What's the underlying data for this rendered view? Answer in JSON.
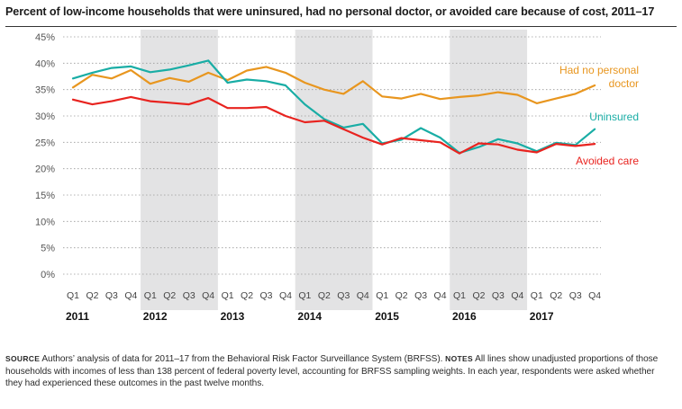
{
  "title": "Percent of low-income households that were uninsured, had no personal doctor, or avoided care because of cost, 2011–17",
  "footnote": {
    "source_label": "SOURCE",
    "source_text": " Authors’ analysis of data for 2011–17 from the Behavioral Risk Factor Surveillance System (BRFSS). ",
    "notes_label": "NOTES",
    "notes_text": " All lines show unadjusted proportions of those households with incomes of less than 138 percent of federal poverty level, accounting for BRFSS sampling weights. In each year, respondents were asked whether they had experienced these outcomes in the past twelve months."
  },
  "chart_data": {
    "type": "line",
    "title": "Percent of low-income households that were uninsured, had no personal doctor, or avoided care because of cost, 2011–17",
    "xlabel": "",
    "ylabel": "",
    "ylim": [
      0,
      45
    ],
    "yticks": [
      "0%",
      "5%",
      "10%",
      "15%",
      "20%",
      "25%",
      "30%",
      "35%",
      "40%",
      "45%"
    ],
    "grid": "horizontal-dotted",
    "years": [
      "2011",
      "2012",
      "2013",
      "2014",
      "2015",
      "2016",
      "2017"
    ],
    "shaded_years": [
      "2012",
      "2014",
      "2016"
    ],
    "categories": [
      "Q1",
      "Q2",
      "Q3",
      "Q4",
      "Q1",
      "Q2",
      "Q3",
      "Q4",
      "Q1",
      "Q2",
      "Q3",
      "Q4",
      "Q1",
      "Q2",
      "Q3",
      "Q4",
      "Q1",
      "Q2",
      "Q3",
      "Q4",
      "Q1",
      "Q2",
      "Q3",
      "Q4",
      "Q1",
      "Q2",
      "Q3",
      "Q4"
    ],
    "series": [
      {
        "name": "Had no personal doctor",
        "label_lines": [
          "Had no personal",
          "doctor"
        ],
        "color": "#e8961f",
        "values": [
          35.4,
          37.8,
          37.1,
          38.7,
          36.1,
          37.2,
          36.5,
          38.2,
          36.8,
          38.6,
          39.3,
          38.2,
          36.3,
          35.0,
          34.2,
          36.6,
          33.7,
          33.3,
          34.2,
          33.2,
          33.6,
          33.9,
          34.5,
          34.0,
          32.4,
          33.3,
          34.2,
          35.8
        ]
      },
      {
        "name": "Uninsured",
        "label_lines": [
          "Uninsured"
        ],
        "color": "#19ada5",
        "values": [
          37.1,
          38.2,
          39.1,
          39.4,
          38.3,
          38.8,
          39.6,
          40.5,
          36.3,
          36.9,
          36.6,
          35.8,
          32.2,
          29.4,
          27.8,
          28.5,
          24.8,
          25.5,
          27.7,
          25.9,
          23.0,
          24.1,
          25.6,
          24.8,
          23.3,
          24.9,
          24.5,
          27.5
        ]
      },
      {
        "name": "Avoided care",
        "label_lines": [
          "Avoided care"
        ],
        "color": "#e8231f",
        "values": [
          33.1,
          32.2,
          32.8,
          33.6,
          32.8,
          32.5,
          32.2,
          33.4,
          31.5,
          31.5,
          31.7,
          30.0,
          28.8,
          29.1,
          27.5,
          25.9,
          24.6,
          25.8,
          25.4,
          25.0,
          22.9,
          24.8,
          24.6,
          23.6,
          23.1,
          24.7,
          24.3,
          24.7
        ]
      }
    ]
  }
}
